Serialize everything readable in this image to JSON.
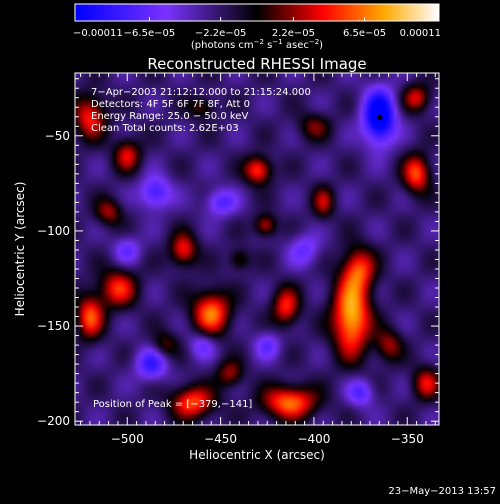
{
  "chart_data": {
    "type": "heatmap",
    "title": "Reconstructed RHESSI Image",
    "xlabel": "Heliocentric X (arcsec)",
    "ylabel": "Heliocentric Y (arcsec)",
    "xlim": [
      -528,
      -333
    ],
    "ylim": [
      -202,
      -17
    ],
    "x_ticks": [
      {
        "value": -500,
        "label": "−500"
      },
      {
        "value": -450,
        "label": "−450"
      },
      {
        "value": -400,
        "label": "−400"
      },
      {
        "value": -350,
        "label": "−350"
      }
    ],
    "y_ticks": [
      {
        "value": -50,
        "label": "−50"
      },
      {
        "value": -100,
        "label": "−100"
      },
      {
        "value": -150,
        "label": "−150"
      },
      {
        "value": -200,
        "label": "−200"
      }
    ],
    "colorbar": {
      "range": [
        -0.00011,
        0.00011
      ],
      "ticks": [
        {
          "value": -0.00011,
          "label": "−0.00011"
        },
        {
          "value": -6.5e-05,
          "label": "−6.5e−05"
        },
        {
          "value": -2.2e-05,
          "label": "−2.2e−05"
        },
        {
          "value": 2.2e-05,
          "label": "2.2e−05"
        },
        {
          "value": 6.5e-05,
          "label": "6.5e−05"
        },
        {
          "value": 0.00011,
          "label": "0.00011"
        }
      ],
      "unit_prefix": "(photons cm",
      "unit_sup1": "−2",
      "unit_mid": " s",
      "unit_sup2": "−1",
      "unit_mid2": " asec",
      "unit_sup3": "−2",
      "unit_suffix": ")"
    },
    "colors": {
      "low": "#0000ff",
      "mid_low": "#7a33ff",
      "zero": "#000000",
      "mid_high": "#ff0000",
      "high_warm": "#ffaa00",
      "high": "#ffffff"
    },
    "info_lines": [
      "7−Apr−2003 21:12:12.000 to 21:15:24.000",
      "Detectors: 4F 5F 6F 7F 8F, Att 0",
      "Energy Range: 25.0 − 50.0 keV",
      "Clean    Total counts: 2.62E+03"
    ],
    "peak_label": "Position of Peak = [−379,−141]",
    "peak": {
      "x": -379,
      "y": -141
    },
    "blobs": [
      {
        "x": -380,
        "y": -145,
        "value": 0.00011,
        "sx": 7,
        "sy": 14
      },
      {
        "x": -376,
        "y": -120,
        "value": 7e-05,
        "sx": 6,
        "sy": 8
      },
      {
        "x": -455,
        "y": -143,
        "value": 9e-05,
        "sx": 7,
        "sy": 8
      },
      {
        "x": -430,
        "y": -68,
        "value": 8e-05,
        "sx": 5,
        "sy": 5
      },
      {
        "x": -426,
        "y": -97,
        "value": 6e-05,
        "sx": 4,
        "sy": 4
      },
      {
        "x": -470,
        "y": -110,
        "value": 7e-05,
        "sx": 5,
        "sy": 6
      },
      {
        "x": -415,
        "y": -140,
        "value": 7e-05,
        "sx": 5,
        "sy": 7
      },
      {
        "x": -413,
        "y": -190,
        "value": 9e-05,
        "sx": 10,
        "sy": 6
      },
      {
        "x": -465,
        "y": -190,
        "value": 8e-05,
        "sx": 8,
        "sy": 6
      },
      {
        "x": -505,
        "y": -130,
        "value": 7e-05,
        "sx": 7,
        "sy": 7
      },
      {
        "x": -520,
        "y": -145,
        "value": 8e-05,
        "sx": 5,
        "sy": 8
      },
      {
        "x": -520,
        "y": -40,
        "value": 7e-05,
        "sx": 6,
        "sy": 8
      },
      {
        "x": -500,
        "y": -60,
        "value": 6e-05,
        "sx": 5,
        "sy": 6
      },
      {
        "x": -510,
        "y": -90,
        "value": 5e-05,
        "sx": 5,
        "sy": 5
      },
      {
        "x": -345,
        "y": -70,
        "value": 8e-05,
        "sx": 5,
        "sy": 7
      },
      {
        "x": -345,
        "y": -30,
        "value": 6e-05,
        "sx": 5,
        "sy": 5
      },
      {
        "x": -340,
        "y": -180,
        "value": 6e-05,
        "sx": 5,
        "sy": 6
      },
      {
        "x": -360,
        "y": -160,
        "value": 5e-05,
        "sx": 5,
        "sy": 6
      },
      {
        "x": -395,
        "y": -85,
        "value": 5e-05,
        "sx": 4,
        "sy": 6
      },
      {
        "x": -445,
        "y": -175,
        "value": 5e-05,
        "sx": 5,
        "sy": 5
      },
      {
        "x": -480,
        "y": -160,
        "value": 4e-05,
        "sx": 5,
        "sy": 5
      },
      {
        "x": -487,
        "y": -170,
        "value": -6e-05,
        "sx": 6,
        "sy": 6
      },
      {
        "x": -440,
        "y": -115,
        "value": 4e-05,
        "sx": 4,
        "sy": 4
      },
      {
        "x": -400,
        "y": -45,
        "value": 4e-05,
        "sx": 6,
        "sy": 5
      },
      {
        "x": -460,
        "y": -35,
        "value": 4e-05,
        "sx": 5,
        "sy": 4
      },
      {
        "x": -365,
        "y": -40,
        "value": -0.00011,
        "sx": 6,
        "sy": 10
      },
      {
        "x": -485,
        "y": -80,
        "value": -6e-05,
        "sx": 6,
        "sy": 6
      },
      {
        "x": -450,
        "y": -85,
        "value": -5e-05,
        "sx": 6,
        "sy": 5
      },
      {
        "x": -405,
        "y": -110,
        "value": -4e-05,
        "sx": 6,
        "sy": 6
      },
      {
        "x": -460,
        "y": -160,
        "value": -4e-05,
        "sx": 5,
        "sy": 5
      },
      {
        "x": -375,
        "y": -185,
        "value": -5e-05,
        "sx": 5,
        "sy": 5
      },
      {
        "x": -425,
        "y": -160,
        "value": -4e-05,
        "sx": 5,
        "sy": 5
      },
      {
        "x": -500,
        "y": -110,
        "value": -4e-05,
        "sx": 5,
        "sy": 5
      }
    ]
  },
  "footer": {
    "date_stamp": "23−May−2013 13:57"
  }
}
